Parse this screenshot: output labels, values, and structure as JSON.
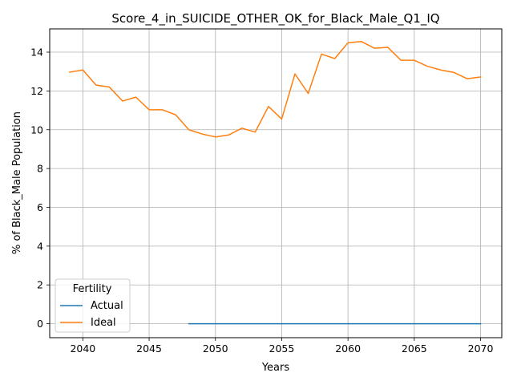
{
  "chart_data": {
    "type": "line",
    "title": "Score_4_in_SUICIDE_OTHER_OK_for_Black_Male_Q1_IQ",
    "xlabel": "Years",
    "ylabel": "% of Black_Male Population",
    "xlim": [
      2037.5,
      2071.6
    ],
    "ylim": [
      -0.72,
      15.2
    ],
    "xticks": [
      2040,
      2045,
      2050,
      2055,
      2060,
      2065,
      2070
    ],
    "yticks": [
      0,
      2,
      4,
      6,
      8,
      10,
      12,
      14
    ],
    "grid": true,
    "legend": {
      "title": "Fertility",
      "placement": "lower-left"
    },
    "series": [
      {
        "name": "Actual",
        "color": "#1f77b4",
        "x": [
          2048,
          2049,
          2050,
          2051,
          2052,
          2053,
          2054,
          2055,
          2056,
          2057,
          2058,
          2059,
          2060,
          2061,
          2062,
          2063,
          2064,
          2065,
          2066,
          2067,
          2068,
          2069,
          2070
        ],
        "y": [
          0,
          0,
          0,
          0,
          0,
          0,
          0,
          0,
          0,
          0,
          0,
          0,
          0,
          0,
          0,
          0,
          0,
          0,
          0,
          0,
          0,
          0,
          0
        ]
      },
      {
        "name": "Ideal",
        "color": "#ff7f0e",
        "x": [
          2039,
          2040,
          2041,
          2042,
          2043,
          2044,
          2045,
          2046,
          2047,
          2048,
          2049,
          2050,
          2051,
          2052,
          2053,
          2054,
          2055,
          2056,
          2057,
          2058,
          2059,
          2060,
          2061,
          2062,
          2063,
          2064,
          2065,
          2066,
          2067,
          2068,
          2069,
          2070
        ],
        "y": [
          12.97,
          13.08,
          12.3,
          12.2,
          11.48,
          11.68,
          11.03,
          11.03,
          10.77,
          10.0,
          9.78,
          9.63,
          9.73,
          10.08,
          9.88,
          11.2,
          10.55,
          12.88,
          11.87,
          13.9,
          13.67,
          14.48,
          14.55,
          14.2,
          14.25,
          13.58,
          13.58,
          13.27,
          13.08,
          12.95,
          12.63,
          12.72
        ]
      }
    ]
  }
}
